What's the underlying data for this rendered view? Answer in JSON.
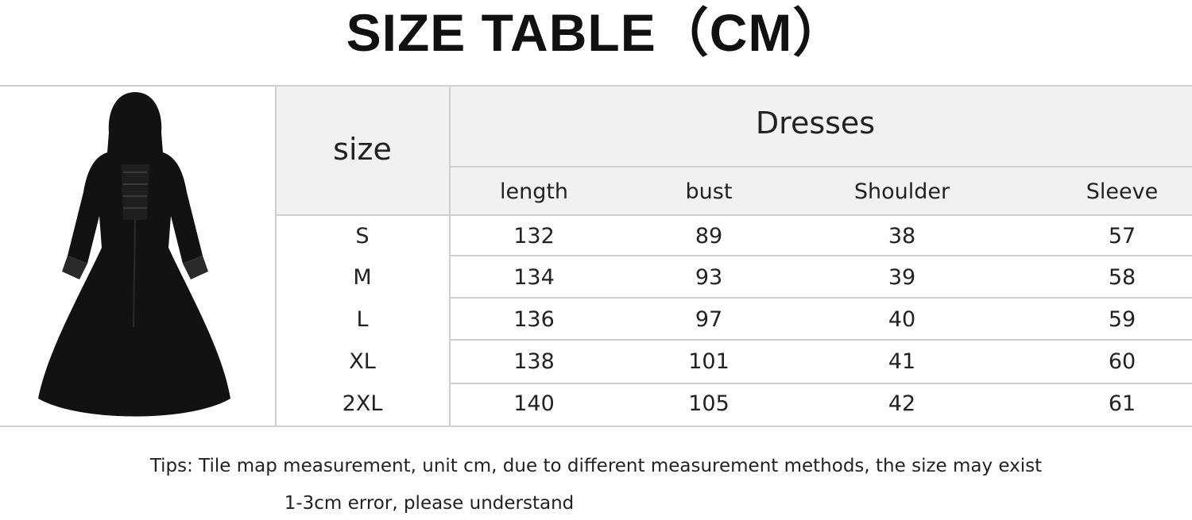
{
  "title": "SIZE TABLE（CM）",
  "table": {
    "size_header": "size",
    "group_header": "Dresses",
    "columns": [
      "length",
      "bust",
      "Shoulder",
      "Sleeve"
    ],
    "rows": [
      {
        "size": "S",
        "values": [
          "132",
          "89",
          "38",
          "57"
        ]
      },
      {
        "size": "M",
        "values": [
          "134",
          "93",
          "39",
          "58"
        ]
      },
      {
        "size": "L",
        "values": [
          "136",
          "97",
          "40",
          "59"
        ]
      },
      {
        "size": "XL",
        "values": [
          "138",
          "101",
          "41",
          "60"
        ]
      },
      {
        "size": "2XL",
        "values": [
          "140",
          "105",
          "42",
          "61"
        ]
      }
    ]
  },
  "tips": {
    "line1": "Tips: Tile map measurement, unit cm, due to different measurement methods, the size may exist",
    "line2": "1-3cm error, please understand"
  },
  "image": {
    "icon": "hooded-black-dress-image"
  }
}
